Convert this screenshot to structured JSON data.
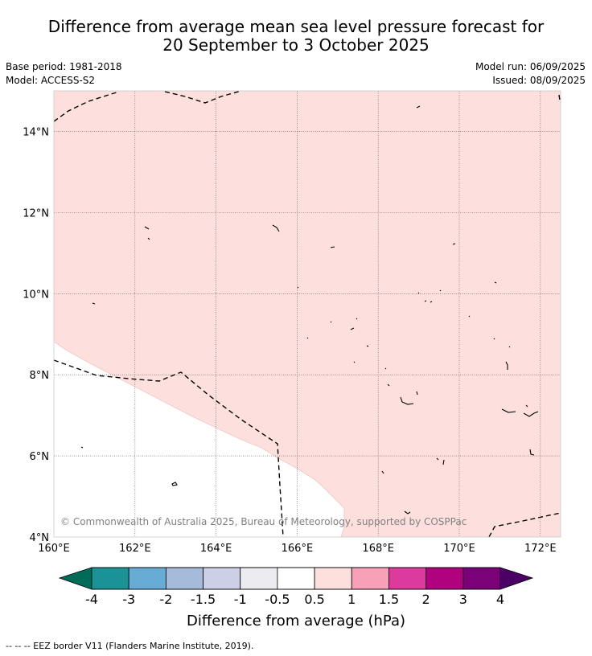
{
  "header": {
    "title_line1": "Difference from average mean sea level pressure forecast for",
    "title_line2": "20 September to 3 October 2025",
    "base_period": "Base period: 1981-2018",
    "model": "Model: ACCESS-S2",
    "model_run": "Model run: 06/09/2025",
    "issued": "Issued: 08/09/2025"
  },
  "map": {
    "lon_range": [
      160,
      172.5
    ],
    "lat_range": [
      4,
      15
    ],
    "lon_ticks": [
      "160°E",
      "162°E",
      "164°E",
      "166°E",
      "168°E",
      "170°E",
      "172°E"
    ],
    "lat_ticks": [
      "4°N",
      "6°N",
      "8°N",
      "10°N",
      "12°N",
      "14°N"
    ],
    "grid": true,
    "fill_category": "0.5 to 1",
    "fill_color": "#fde0de",
    "copyright": "© Commonwealth of Australia 2025, Bureau of Meteorology, supported by COSPPac"
  },
  "colorbar": {
    "labels": [
      "-4",
      "-3",
      "-2",
      "-1.5",
      "-1",
      "-0.5",
      "0.5",
      "1",
      "1.5",
      "2",
      "3",
      "4"
    ],
    "colors": [
      "#1a9296",
      "#68acd6",
      "#a6bad9",
      "#cccfe6",
      "#ecebf0",
      "#ffffff",
      "#fde0de",
      "#f8a0b8",
      "#dd3a9e",
      "#b0027f",
      "#7b0178"
    ],
    "extend_low_color": "#006b59",
    "extend_high_color": "#4b0066",
    "title": "Difference from average (hPa)"
  },
  "footnote": "--  --  -- EEZ border V11 (Flanders Marine Institute, 2019)."
}
